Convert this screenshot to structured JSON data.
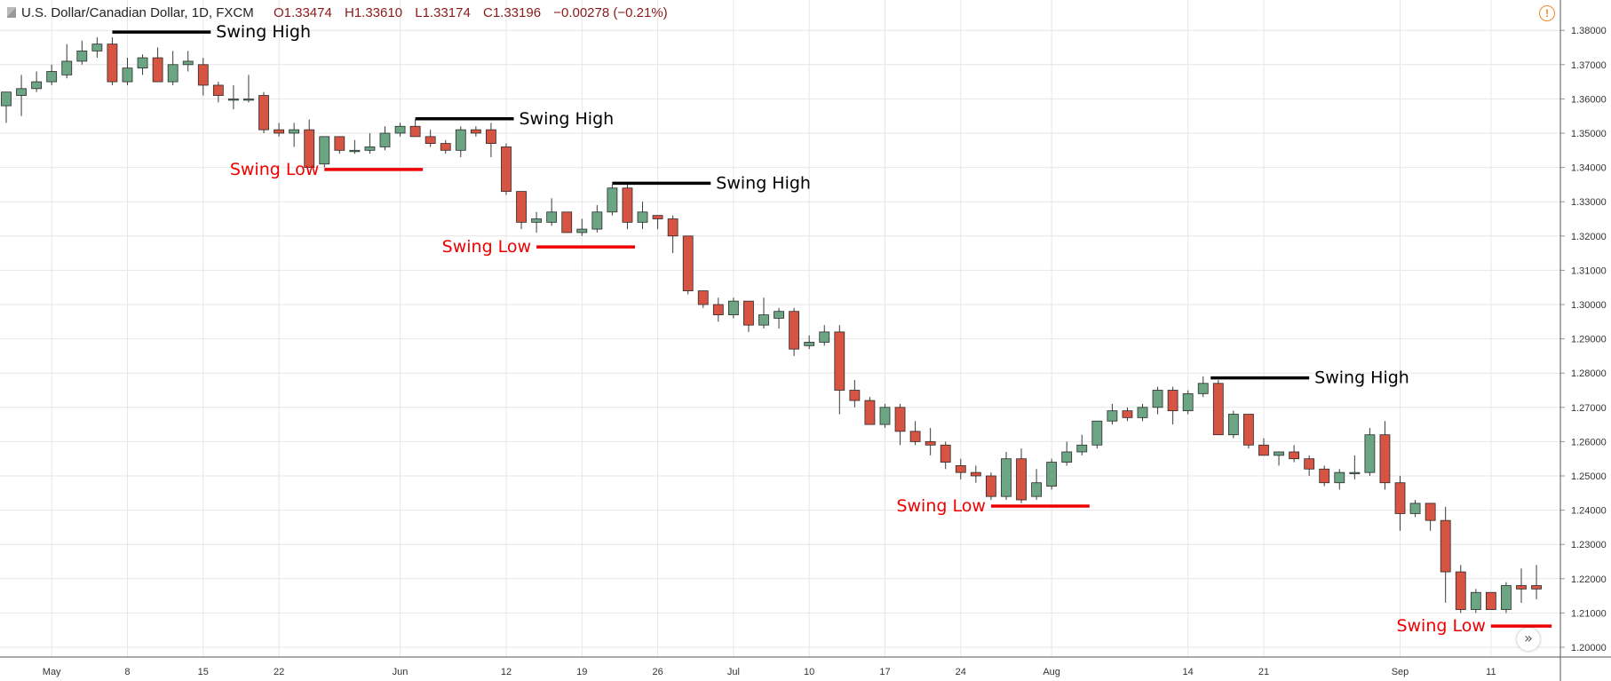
{
  "header": {
    "symbol": "U.S. Dollar/Canadian Dollar, 1D, FXCM",
    "open": "O1.33474",
    "high": "H1.33610",
    "low": "L1.33174",
    "close": "C1.33196",
    "change": "−0.00278 (−0.21%)"
  },
  "colors": {
    "up": "#6ba583",
    "down": "#d75442",
    "swing_high": "#000000",
    "swing_low": "#ee0000",
    "grid": "#e6e6e6"
  },
  "icons": {
    "warning": "warning-icon",
    "scroll": "scroll-right-icon"
  },
  "chart_data": {
    "type": "candlestick",
    "y_axis": {
      "min": 1.2,
      "max": 1.38,
      "ticks": [
        "1.20000",
        "1.21000",
        "1.22000",
        "1.23000",
        "1.24000",
        "1.25000",
        "1.26000",
        "1.27000",
        "1.28000",
        "1.29000",
        "1.30000",
        "1.31000",
        "1.32000",
        "1.33000",
        "1.34000",
        "1.35000",
        "1.36000",
        "1.37000",
        "1.38000"
      ]
    },
    "x_axis": {
      "labels": [
        {
          "i": 3,
          "t": "May"
        },
        {
          "i": 8,
          "t": "8"
        },
        {
          "i": 13,
          "t": "15"
        },
        {
          "i": 18,
          "t": "22"
        },
        {
          "i": 26,
          "t": "Jun"
        },
        {
          "i": 33,
          "t": "12"
        },
        {
          "i": 38,
          "t": "19"
        },
        {
          "i": 43,
          "t": "26"
        },
        {
          "i": 48,
          "t": "Jul"
        },
        {
          "i": 53,
          "t": "10"
        },
        {
          "i": 58,
          "t": "17"
        },
        {
          "i": 63,
          "t": "24"
        },
        {
          "i": 69,
          "t": "Aug"
        },
        {
          "i": 78,
          "t": "14"
        },
        {
          "i": 83,
          "t": "21"
        },
        {
          "i": 92,
          "t": "Sep"
        },
        {
          "i": 98,
          "t": "11"
        }
      ]
    },
    "candles": [
      [
        1.358,
        1.362,
        1.353,
        1.362
      ],
      [
        1.361,
        1.367,
        1.355,
        1.363
      ],
      [
        1.363,
        1.368,
        1.362,
        1.365
      ],
      [
        1.365,
        1.37,
        1.364,
        1.368
      ],
      [
        1.367,
        1.376,
        1.366,
        1.371
      ],
      [
        1.371,
        1.377,
        1.37,
        1.374
      ],
      [
        1.374,
        1.378,
        1.372,
        1.376
      ],
      [
        1.376,
        1.378,
        1.364,
        1.365
      ],
      [
        1.365,
        1.372,
        1.364,
        1.369
      ],
      [
        1.369,
        1.373,
        1.367,
        1.372
      ],
      [
        1.372,
        1.375,
        1.365,
        1.365
      ],
      [
        1.365,
        1.374,
        1.364,
        1.37
      ],
      [
        1.37,
        1.374,
        1.368,
        1.371
      ],
      [
        1.37,
        1.372,
        1.361,
        1.364
      ],
      [
        1.364,
        1.365,
        1.359,
        1.361
      ],
      [
        1.36,
        1.364,
        1.357,
        1.36
      ],
      [
        1.36,
        1.367,
        1.359,
        1.36
      ],
      [
        1.361,
        1.362,
        1.35,
        1.351
      ],
      [
        1.351,
        1.353,
        1.349,
        1.35
      ],
      [
        1.35,
        1.353,
        1.346,
        1.351
      ],
      [
        1.351,
        1.354,
        1.34,
        1.34
      ],
      [
        1.341,
        1.349,
        1.34,
        1.349
      ],
      [
        1.349,
        1.349,
        1.344,
        1.345
      ],
      [
        1.345,
        1.348,
        1.344,
        1.345
      ],
      [
        1.345,
        1.35,
        1.344,
        1.346
      ],
      [
        1.346,
        1.352,
        1.345,
        1.35
      ],
      [
        1.35,
        1.353,
        1.349,
        1.352
      ],
      [
        1.352,
        1.354,
        1.349,
        1.349
      ],
      [
        1.349,
        1.351,
        1.346,
        1.347
      ],
      [
        1.347,
        1.348,
        1.344,
        1.345
      ],
      [
        1.345,
        1.352,
        1.343,
        1.351
      ],
      [
        1.351,
        1.352,
        1.349,
        1.35
      ],
      [
        1.351,
        1.353,
        1.343,
        1.347
      ],
      [
        1.346,
        1.347,
        1.332,
        1.333
      ],
      [
        1.333,
        1.333,
        1.322,
        1.324
      ],
      [
        1.324,
        1.327,
        1.321,
        1.325
      ],
      [
        1.324,
        1.331,
        1.323,
        1.327
      ],
      [
        1.327,
        1.327,
        1.321,
        1.321
      ],
      [
        1.321,
        1.325,
        1.32,
        1.322
      ],
      [
        1.322,
        1.329,
        1.321,
        1.327
      ],
      [
        1.327,
        1.335,
        1.326,
        1.334
      ],
      [
        1.334,
        1.335,
        1.322,
        1.324
      ],
      [
        1.324,
        1.33,
        1.322,
        1.327
      ],
      [
        1.326,
        1.326,
        1.322,
        1.325
      ],
      [
        1.325,
        1.326,
        1.315,
        1.32
      ],
      [
        1.32,
        1.32,
        1.303,
        1.304
      ],
      [
        1.304,
        1.304,
        1.299,
        1.3
      ],
      [
        1.3,
        1.302,
        1.295,
        1.297
      ],
      [
        1.297,
        1.302,
        1.296,
        1.301
      ],
      [
        1.301,
        1.301,
        1.292,
        1.294
      ],
      [
        1.294,
        1.302,
        1.293,
        1.297
      ],
      [
        1.296,
        1.299,
        1.293,
        1.298
      ],
      [
        1.298,
        1.299,
        1.285,
        1.287
      ],
      [
        1.288,
        1.291,
        1.287,
        1.289
      ],
      [
        1.289,
        1.294,
        1.288,
        1.292
      ],
      [
        1.292,
        1.294,
        1.268,
        1.275
      ],
      [
        1.275,
        1.278,
        1.27,
        1.272
      ],
      [
        1.272,
        1.273,
        1.265,
        1.265
      ],
      [
        1.265,
        1.271,
        1.264,
        1.27
      ],
      [
        1.27,
        1.271,
        1.259,
        1.263
      ],
      [
        1.263,
        1.266,
        1.259,
        1.26
      ],
      [
        1.26,
        1.264,
        1.256,
        1.259
      ],
      [
        1.259,
        1.26,
        1.252,
        1.254
      ],
      [
        1.253,
        1.255,
        1.249,
        1.251
      ],
      [
        1.251,
        1.253,
        1.248,
        1.25
      ],
      [
        1.25,
        1.251,
        1.243,
        1.244
      ],
      [
        1.244,
        1.257,
        1.243,
        1.255
      ],
      [
        1.255,
        1.258,
        1.242,
        1.243
      ],
      [
        1.244,
        1.252,
        1.243,
        1.248
      ],
      [
        1.247,
        1.255,
        1.246,
        1.254
      ],
      [
        1.254,
        1.26,
        1.253,
        1.257
      ],
      [
        1.257,
        1.262,
        1.256,
        1.259
      ],
      [
        1.259,
        1.266,
        1.258,
        1.266
      ],
      [
        1.266,
        1.271,
        1.265,
        1.269
      ],
      [
        1.269,
        1.27,
        1.266,
        1.267
      ],
      [
        1.267,
        1.271,
        1.266,
        1.27
      ],
      [
        1.27,
        1.276,
        1.268,
        1.275
      ],
      [
        1.275,
        1.276,
        1.265,
        1.269
      ],
      [
        1.269,
        1.275,
        1.268,
        1.274
      ],
      [
        1.274,
        1.279,
        1.273,
        1.277
      ],
      [
        1.277,
        1.278,
        1.262,
        1.262
      ],
      [
        1.262,
        1.269,
        1.261,
        1.268
      ],
      [
        1.268,
        1.268,
        1.258,
        1.259
      ],
      [
        1.259,
        1.261,
        1.256,
        1.256
      ],
      [
        1.256,
        1.257,
        1.253,
        1.257
      ],
      [
        1.257,
        1.259,
        1.254,
        1.255
      ],
      [
        1.255,
        1.256,
        1.25,
        1.252
      ],
      [
        1.252,
        1.253,
        1.247,
        1.248
      ],
      [
        1.248,
        1.252,
        1.246,
        1.251
      ],
      [
        1.251,
        1.256,
        1.249,
        1.251
      ],
      [
        1.251,
        1.264,
        1.25,
        1.262
      ],
      [
        1.262,
        1.266,
        1.246,
        1.248
      ],
      [
        1.248,
        1.25,
        1.234,
        1.239
      ],
      [
        1.239,
        1.243,
        1.238,
        1.242
      ],
      [
        1.242,
        1.242,
        1.234,
        1.237
      ],
      [
        1.237,
        1.241,
        1.213,
        1.222
      ],
      [
        1.222,
        1.224,
        1.21,
        1.211
      ],
      [
        1.211,
        1.217,
        1.21,
        1.216
      ],
      [
        1.216,
        1.216,
        1.211,
        1.211
      ],
      [
        1.211,
        1.219,
        1.21,
        1.218
      ],
      [
        1.218,
        1.223,
        1.213,
        1.217
      ],
      [
        1.218,
        1.224,
        1.214,
        1.217
      ]
    ],
    "annotations": [
      {
        "kind": "swing_high",
        "label": "Swing High",
        "y": 1.3795,
        "x0": 7.0,
        "x1": 13.5
      },
      {
        "kind": "swing_high",
        "label": "Swing High",
        "y": 1.3542,
        "x0": 27.0,
        "x1": 33.5
      },
      {
        "kind": "swing_high",
        "label": "Swing High",
        "y": 1.3354,
        "x0": 40.0,
        "x1": 46.5
      },
      {
        "kind": "swing_low",
        "label": "Swing Low",
        "y": 1.3394,
        "x0": 21.0,
        "x1": 27.5
      },
      {
        "kind": "swing_low",
        "label": "Swing Low",
        "y": 1.3168,
        "x0": 35.0,
        "x1": 41.5
      },
      {
        "kind": "swing_low",
        "label": "Swing Low",
        "y": 1.2412,
        "x0": 65.0,
        "x1": 71.5
      },
      {
        "kind": "swing_high",
        "label": "Swing High",
        "y": 1.2786,
        "x0": 79.5,
        "x1": 86.0
      },
      {
        "kind": "swing_low",
        "label": "Swing Low",
        "y": 1.2062,
        "x0": 98.0,
        "x1": 102.0
      }
    ]
  }
}
